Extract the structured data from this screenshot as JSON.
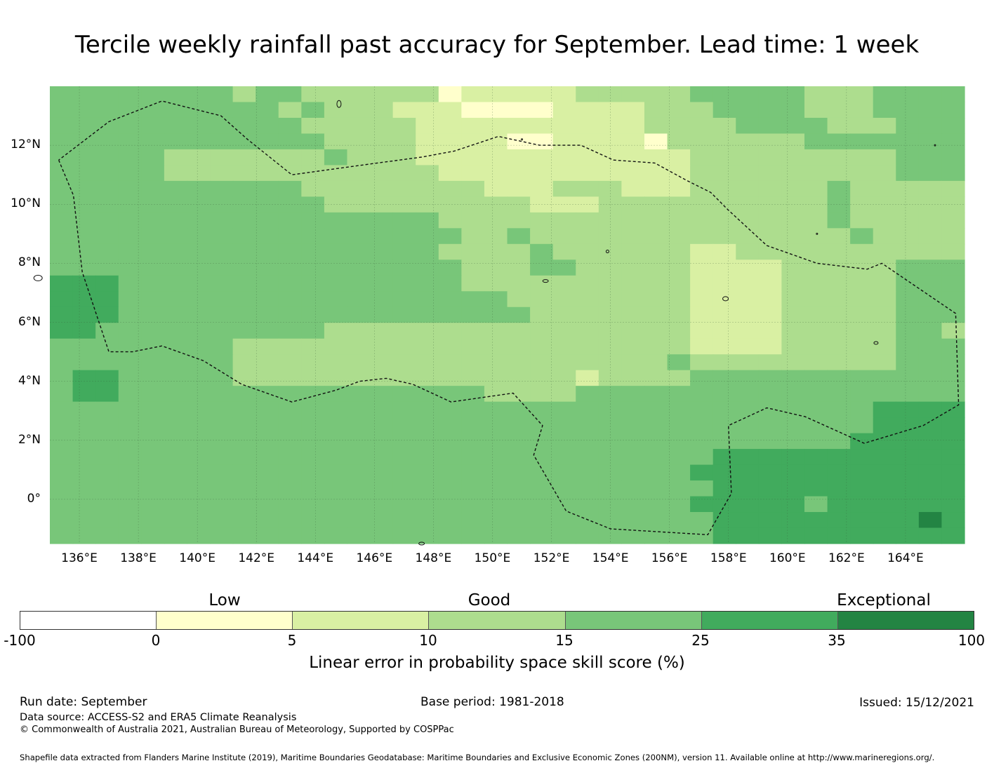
{
  "title": "Tercile weekly rainfall past accuracy for September. Lead time: 1 week",
  "axes": {
    "x_ticks": [
      "136°E",
      "138°E",
      "140°E",
      "142°E",
      "144°E",
      "146°E",
      "148°E",
      "150°E",
      "152°E",
      "154°E",
      "156°E",
      "158°E",
      "160°E",
      "162°E",
      "164°E"
    ],
    "y_ticks": [
      "12°N",
      "10°N",
      "8°N",
      "6°N",
      "4°N",
      "2°N",
      "0°"
    ]
  },
  "legend": {
    "categories": [
      "Low",
      "Good",
      "Exceptional"
    ],
    "bounds": [
      "-100",
      "0",
      "5",
      "10",
      "15",
      "25",
      "35",
      "100"
    ],
    "colors": [
      "#ffffff",
      "#ffffcc",
      "#d9f0a3",
      "#addd8e",
      "#78c679",
      "#41ab5d",
      "#238443"
    ],
    "title": "Linear error in probability space skill score (%)"
  },
  "footer": {
    "run_date": "Run date: September",
    "base_period": "Base period: 1981-2018",
    "issued": "Issued: 15/12/2021",
    "data_source": "Data source: ACCESS-S2 and ERA5 Climate Reanalysis",
    "copyright": "© Commonwealth of Australia 2021, Australian Bureau of Meteorology, Supported by COSPPac",
    "shapefile": "Shapefile data extracted from Flanders Marine Institute (2019), Maritime Boundaries Geodatabase: Maritime Boundaries and Exclusive Economic Zones (200NM), version 11. Available online at http://www.marineregions.org/."
  },
  "chart_data": {
    "type": "heatmap",
    "title": "Tercile weekly rainfall past accuracy for September. Lead time: 1 week",
    "x_range_deg_e": [
      135,
      166
    ],
    "y_range_deg_n": [
      -1.5,
      14
    ],
    "cell_size_deg": 0.83,
    "grid_encoding": "rows north to south; digits are legend color indices (1=0-5, 2=5-10, 3=10-15, 4=15-25, 5=25-35, 6=35-100)",
    "grid": [
      "4444444434433333312222233333444443334444",
      "4444444444343332221111222233344443334444",
      "4444444444433333222222222233334444333444",
      "4444444444443333222211222213333334444444",
      "4444433333334333222222222222333333333444",
      "4444433333333333322222222222333333333444",
      "4444444444433333333222333222333333433333",
      "4444444444443333333332223333333333433333",
      "4444444444444444433333333333333333433333",
      "4444444444444444443343333333333333343333",
      "4444444444444444433334333333223333333333",
      "4444444444444444443334433333222233333444",
      "5554444444444444443333333333222233333444",
      "5554444444444444444433333333222233333444",
      "5554444444444444444443333333222233333444",
      "5544444444443333333333333333222233333443",
      "4444444433333333333333333333222233333444",
      "4444444433333333333333333334333333333444",
      "4554444433333333333333323333444444444444",
      "4554444444444444444333344444444444444444",
      "4444444444444444444444444444444444445555",
      "4444444444444444444444444444444444445555",
      "4444444444444444444444444444444444455555",
      "4444444444444444444444444444455555555555",
      "4444444444444444444444444444555555555555",
      "4444444444444444444444444444455555555555",
      "4444444444444444444444444444555554555555",
      "4444444444444444444444444444455555555565",
      "4444444444444444444444444444455555555555"
    ],
    "legend_bins": [
      "-100",
      "0",
      "5",
      "10",
      "15",
      "25",
      "35",
      "100"
    ],
    "xlabel": "",
    "ylabel": "",
    "colorbar_label": "Linear error in probability space skill score (%)"
  }
}
